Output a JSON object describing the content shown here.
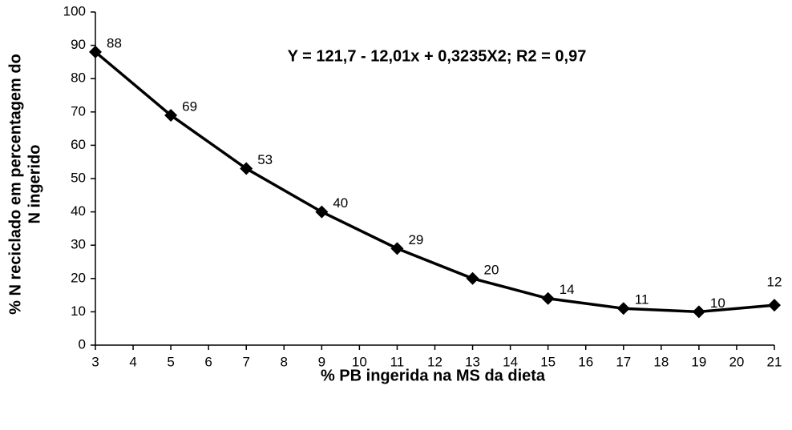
{
  "chart_data": {
    "type": "line",
    "annotation": "Y = 121,7 - 12,01x + 0,3235X2; R2 = 0,97",
    "xlabel": "% PB ingerida na MS da dieta",
    "ylabel": [
      "% N reciclado em percentagem do",
      "N ingerido"
    ],
    "x": [
      3,
      5,
      7,
      9,
      11,
      13,
      15,
      17,
      19,
      21
    ],
    "series": [
      {
        "color": "#000000",
        "values": [
          88,
          69,
          53,
          40,
          29,
          20,
          14,
          11,
          10,
          12
        ]
      }
    ],
    "xlim": [
      3,
      21
    ],
    "xticks": [
      3,
      4,
      5,
      6,
      7,
      8,
      9,
      10,
      11,
      12,
      13,
      14,
      15,
      16,
      17,
      18,
      19,
      20,
      21
    ],
    "ylim": [
      0,
      100
    ],
    "yticks": [
      0,
      10,
      20,
      30,
      40,
      50,
      60,
      70,
      80,
      90,
      100
    ],
    "grid": false,
    "data_labels": true,
    "marker": "diamond"
  }
}
